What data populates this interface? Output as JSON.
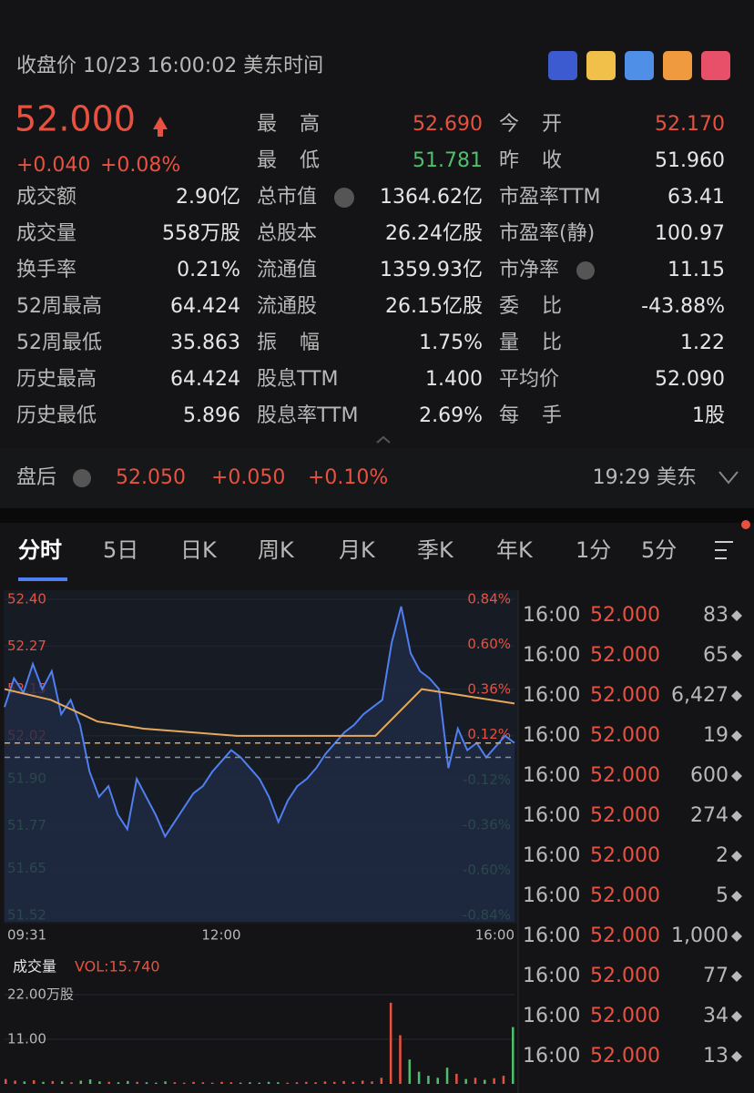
{
  "header": {
    "title": "收盘价 10/23 16:00:02 美东时间"
  },
  "quote": {
    "price": "52.000",
    "change": "+0.040",
    "percent": "+0.08%"
  },
  "stats": [
    [
      [
        "成交额",
        "2.90亿"
      ],
      [
        "成交量",
        "558万股"
      ],
      [
        "换手率",
        "0.21%"
      ],
      [
        "52周最高",
        "64.424"
      ],
      [
        "52周最低",
        "35.863"
      ],
      [
        "历史最高",
        "64.424"
      ],
      [
        "历史最低",
        "5.896"
      ]
    ],
    [
      [
        "最 高",
        "52.690"
      ],
      [
        "最 低",
        "51.781"
      ],
      [
        "总市值",
        "1364.62亿"
      ],
      [
        "总股本",
        "26.24亿股"
      ],
      [
        "流通值",
        "1359.93亿"
      ],
      [
        "流通股",
        "26.15亿股"
      ],
      [
        "振 幅",
        "1.75%"
      ],
      [
        "股息TTM",
        "1.400"
      ],
      [
        "股息率TTM",
        "2.69%"
      ]
    ],
    [
      [
        "今 开",
        "52.170"
      ],
      [
        "昨 收",
        "51.960"
      ],
      [
        "市盈率TTM",
        "63.41"
      ],
      [
        "市盈率(静)",
        "100.97"
      ],
      [
        "市净率",
        "11.15"
      ],
      [
        "委 比",
        "-43.88%"
      ],
      [
        "量 比",
        "1.22"
      ],
      [
        "平均价",
        "52.090"
      ],
      [
        "每 手",
        "1股"
      ]
    ]
  ],
  "after_hours": {
    "label": "盘后",
    "price": "52.050",
    "change": "+0.050",
    "percent": "+0.10%",
    "time": "19:29 美东"
  },
  "tabs": [
    "分时",
    "5日",
    "日K",
    "周K",
    "月K",
    "季K",
    "年K",
    "1分",
    "5分"
  ],
  "chart_data": {
    "type": "line",
    "series": [
      {
        "name": "price",
        "color": "#4f7ff0",
        "values": [
          52.1,
          52.18,
          52.14,
          52.22,
          52.15,
          52.2,
          52.08,
          52.12,
          52.05,
          51.92,
          51.85,
          51.88,
          51.8,
          51.76,
          51.9,
          51.85,
          51.8,
          51.74,
          51.78,
          51.82,
          51.86,
          51.88,
          51.92,
          51.95,
          51.98,
          51.96,
          51.93,
          51.9,
          51.85,
          51.78,
          51.84,
          51.88,
          51.9,
          51.93,
          51.97,
          52.0,
          52.03,
          52.05,
          52.08,
          52.1,
          52.12,
          52.28,
          52.38,
          52.25,
          52.2,
          52.18,
          52.15,
          51.93,
          52.04,
          51.98,
          52.0,
          51.96,
          51.99,
          52.02,
          52.0
        ]
      },
      {
        "name": "average",
        "color": "#e6a85a",
        "values": [
          52.15,
          52.12,
          52.06,
          52.04,
          52.03,
          52.02,
          52.02,
          52.02,
          52.02,
          52.15,
          52.13,
          52.11
        ]
      }
    ],
    "ylim": [
      51.52,
      52.4
    ],
    "yticks": [
      {
        "value": 52.4,
        "label": "52.40"
      },
      52.27,
      52.15,
      52.02,
      {
        "value": 51.9,
        "label": "51.90"
      },
      51.77,
      51.65,
      51.52
    ],
    "y2lim": [
      -0.84,
      0.84
    ],
    "y2ticks": [
      {
        "value": 0.84,
        "label": "0.84%"
      },
      {
        "value": 0.6,
        "label": "0.60%"
      },
      {
        "value": 0.36,
        "label": "0.36%"
      },
      {
        "value": 0.12,
        "label": "0.12%"
      },
      {
        "value": -0.12,
        "label": "-0.12%"
      },
      {
        "value": -0.36,
        "label": "-0.36%"
      },
      {
        "value": -0.6,
        "label": "-0.60%"
      },
      {
        "value": -0.84,
        "label": "-0.84%"
      }
    ],
    "xlabels": [
      "09:31",
      "12:00",
      "16:00"
    ]
  },
  "volume_chart": {
    "type": "bar",
    "title": "成交量",
    "summary": "VOL:15.740",
    "values": [
      1.2,
      0.8,
      0.6,
      0.9,
      0.5,
      0.7,
      0.6,
      0.4,
      0.8,
      1.1,
      0.6,
      0.5,
      0.4,
      0.7,
      0.5,
      0.4,
      0.3,
      0.6,
      0.4,
      0.3,
      0.5,
      0.4,
      0.3,
      0.5,
      0.4,
      0.3,
      0.4,
      0.3,
      0.5,
      0.4,
      0.3,
      0.4,
      0.5,
      0.4,
      0.6,
      0.5,
      0.7,
      0.5,
      0.8,
      0.6,
      1.5,
      20,
      12,
      6,
      3,
      2,
      1.5,
      4,
      2.5,
      1.2,
      1.5,
      1.0,
      1.4,
      2.0,
      14
    ],
    "ylim": [
      0,
      22
    ],
    "yticks": [
      {
        "value": 22,
        "label": "22.00万股"
      },
      {
        "value": 11,
        "label": "11.00"
      }
    ]
  },
  "trades": [
    [
      "16:00",
      "52.000",
      "83"
    ],
    [
      "16:00",
      "52.000",
      "65"
    ],
    [
      "16:00",
      "52.000",
      "6,427"
    ],
    [
      "16:00",
      "52.000",
      "19"
    ],
    [
      "16:00",
      "52.000",
      "600"
    ],
    [
      "16:00",
      "52.000",
      "274"
    ],
    [
      "16:00",
      "52.000",
      "2"
    ],
    [
      "16:00",
      "52.000",
      "5"
    ],
    [
      "16:00",
      "52.000",
      "1,000"
    ],
    [
      "16:00",
      "52.000",
      "77"
    ],
    [
      "16:00",
      "52.000",
      "34"
    ],
    [
      "16:00",
      "52.000",
      "13"
    ]
  ]
}
